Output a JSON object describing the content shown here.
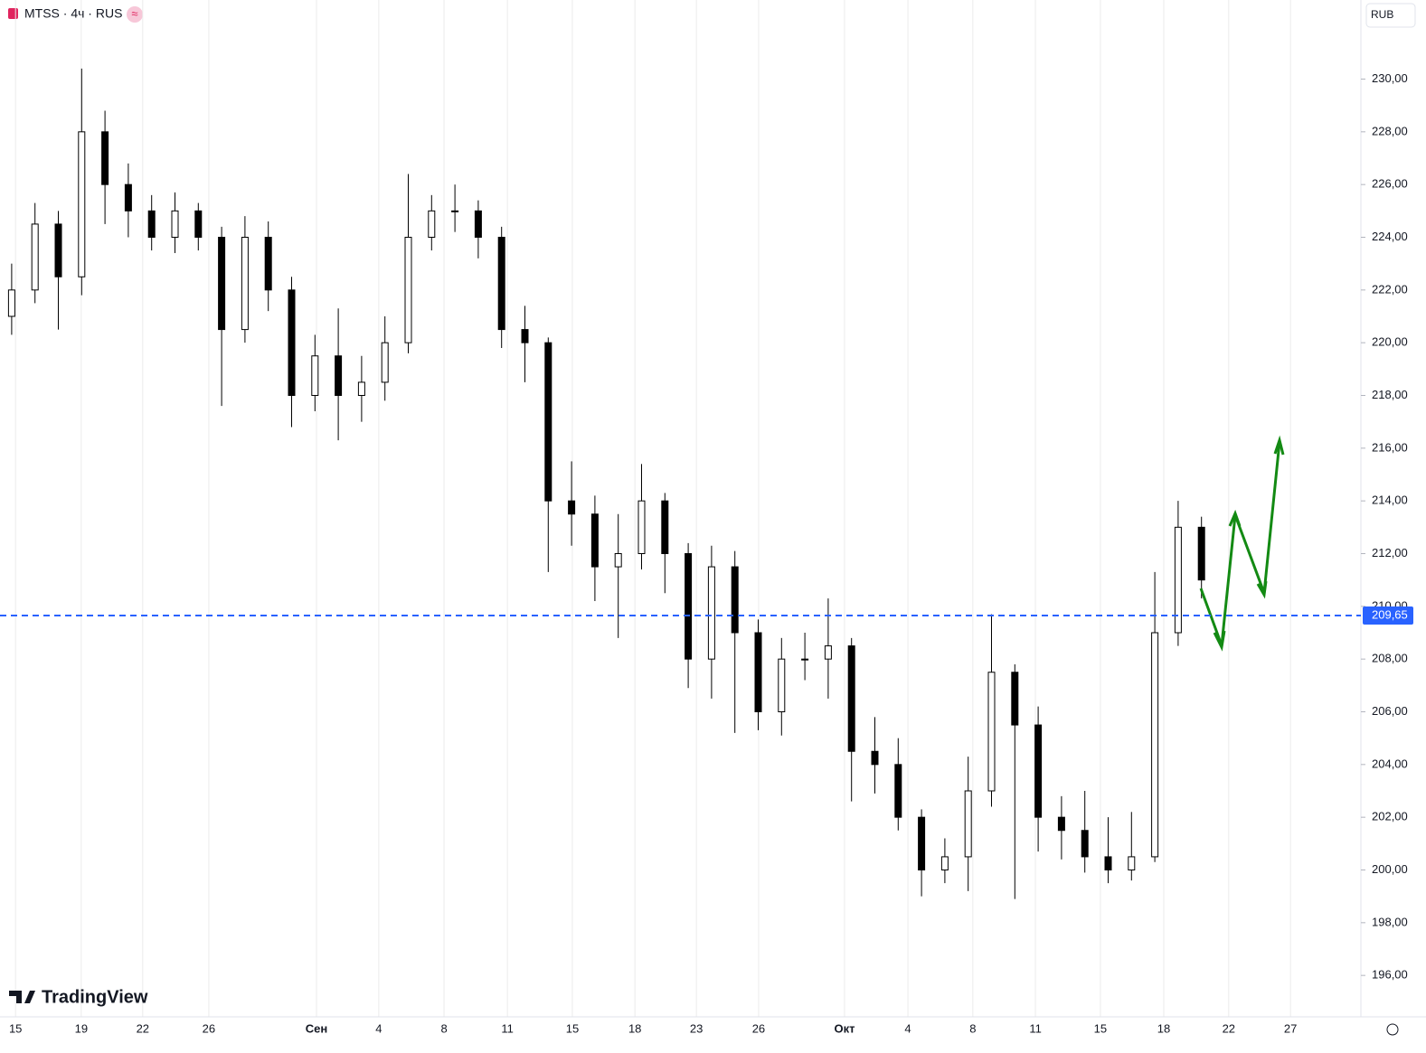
{
  "header": {
    "symbol": "MTSS · 4ч · RUS",
    "currency": "RUB",
    "logo": "TradingView"
  },
  "chart_data": {
    "type": "candlestick",
    "x": [
      0,
      6,
      12,
      18,
      24,
      30,
      36,
      42,
      48,
      54,
      60,
      66,
      72,
      78,
      84,
      90,
      96,
      102,
      108,
      114,
      120,
      126,
      132,
      138,
      144,
      150,
      156,
      162,
      168,
      174,
      180,
      186,
      192,
      198,
      204,
      210,
      216,
      222,
      228,
      234,
      240,
      246,
      252,
      258,
      264,
      270,
      276,
      282,
      288,
      294,
      300,
      306
    ],
    "open": [
      221,
      222,
      224.5,
      222.5,
      228,
      226,
      225,
      224,
      225,
      224,
      220.5,
      224,
      222,
      218,
      219.5,
      218,
      218.5,
      220,
      224,
      225,
      225,
      224,
      220.5,
      220,
      214,
      213.5,
      211.5,
      212,
      214,
      212,
      208,
      211.5,
      209,
      206,
      208,
      208,
      208.5,
      204.5,
      204,
      202,
      200,
      200.5,
      203,
      207.5,
      205.5,
      202,
      201.5,
      200.5,
      200,
      200.5,
      209,
      213
    ],
    "high": [
      223,
      225.3,
      225,
      230.4,
      228.8,
      226.8,
      225.6,
      225.7,
      225.3,
      224.4,
      224.8,
      224.6,
      222.5,
      220.3,
      221.3,
      219.5,
      221,
      226.4,
      225.6,
      226,
      225.4,
      224.4,
      221.4,
      220.2,
      215.5,
      214.2,
      213.5,
      215.4,
      214.3,
      212.4,
      212.3,
      212.1,
      209.5,
      208.8,
      209,
      210.3,
      208.8,
      205.8,
      205,
      202.3,
      201.2,
      204.3,
      209.7,
      207.8,
      206.2,
      202.8,
      203,
      202,
      202.2,
      211.3,
      214,
      213.4
    ],
    "low": [
      220.3,
      221.5,
      220.5,
      221.8,
      224.5,
      224,
      223.5,
      223.4,
      223.5,
      217.6,
      220,
      221.2,
      216.8,
      217.4,
      216.3,
      217,
      217.8,
      219.6,
      223.5,
      224.2,
      223.2,
      219.8,
      218.5,
      211.3,
      212.3,
      210.2,
      208.8,
      211.4,
      210.5,
      206.9,
      206.5,
      205.2,
      205.3,
      205.1,
      207.2,
      206.5,
      202.6,
      202.9,
      201.5,
      199,
      199.5,
      199.2,
      202.4,
      198.9,
      200.7,
      200.4,
      199.9,
      199.5,
      199.6,
      200.3,
      208.5,
      210.3
    ],
    "close": [
      222,
      224.5,
      222.5,
      228,
      226,
      225,
      224,
      225,
      224,
      220.5,
      224,
      222,
      218,
      219.5,
      218,
      218.5,
      220,
      224,
      225,
      225,
      224,
      220.5,
      220,
      214,
      213.5,
      211.5,
      212,
      214,
      212,
      208,
      211.5,
      209,
      206,
      208,
      208,
      208.5,
      204.5,
      204,
      202,
      200,
      200.5,
      203,
      207.5,
      205.5,
      202,
      201.5,
      200.5,
      200,
      200.5,
      209,
      213,
      211
    ],
    "xlim": [
      -3,
      347
    ],
    "xticks": [
      {
        "value": 1,
        "label": "15"
      },
      {
        "value": 17.9,
        "label": "19"
      },
      {
        "value": 33.7,
        "label": "22"
      },
      {
        "value": 50.7,
        "label": "26"
      },
      {
        "value": 78.4,
        "label": "Сен"
      },
      {
        "value": 94.4,
        "label": "4"
      },
      {
        "value": 111.2,
        "label": "8"
      },
      {
        "value": 127.5,
        "label": "11"
      },
      {
        "value": 144.2,
        "label": "15"
      },
      {
        "value": 160.3,
        "label": "18"
      },
      {
        "value": 176.1,
        "label": "23"
      },
      {
        "value": 192.1,
        "label": "26"
      },
      {
        "value": 214.2,
        "label": "Окт"
      },
      {
        "value": 230.5,
        "label": "4"
      },
      {
        "value": 247.2,
        "label": "8"
      },
      {
        "value": 263.3,
        "label": "11"
      },
      {
        "value": 280,
        "label": "15"
      },
      {
        "value": 296.3,
        "label": "18"
      },
      {
        "value": 313,
        "label": "22"
      },
      {
        "value": 328.9,
        "label": "27"
      }
    ],
    "ylim": [
      194.6,
      233
    ],
    "yticks": [
      {
        "value": 196,
        "label": "196,00"
      },
      {
        "value": 198,
        "label": "198,00"
      },
      {
        "value": 200,
        "label": "200,00"
      },
      {
        "value": 202,
        "label": "202,00"
      },
      {
        "value": 204,
        "label": "204,00"
      },
      {
        "value": 206,
        "label": "206,00"
      },
      {
        "value": 208,
        "label": "208,00"
      },
      {
        "value": 210,
        "label": "210,00"
      },
      {
        "value": 212,
        "label": "212,00"
      },
      {
        "value": 214,
        "label": "214,00"
      },
      {
        "value": 216,
        "label": "216,00"
      },
      {
        "value": 218,
        "label": "218,00"
      },
      {
        "value": 220,
        "label": "220,00"
      },
      {
        "value": 222,
        "label": "222,00"
      },
      {
        "value": 224,
        "label": "224,00"
      },
      {
        "value": 226,
        "label": "226,00"
      },
      {
        "value": 228,
        "label": "228,00"
      },
      {
        "value": 230,
        "label": "230,00"
      }
    ],
    "price_line": {
      "value": 209.65,
      "label": "209,65"
    },
    "up_color": "#ffffff",
    "down_color": "#000000",
    "grid": true
  }
}
